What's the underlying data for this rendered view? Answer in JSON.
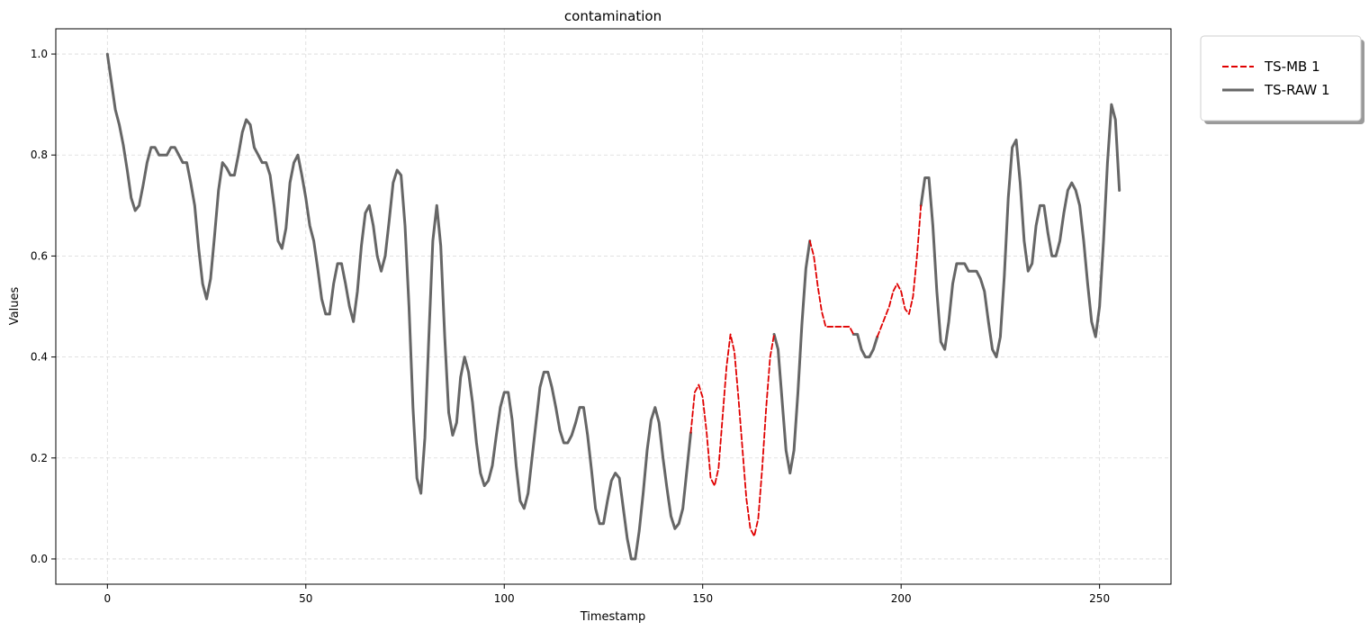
{
  "chart_data": {
    "type": "line",
    "title": "contamination",
    "xlabel": "Timestamp",
    "ylabel": "Values",
    "xlim": [
      -13,
      268
    ],
    "ylim": [
      -0.05,
      1.05
    ],
    "xticks": [
      0,
      50,
      100,
      150,
      200,
      250
    ],
    "xtick_labels": [
      "0",
      "50",
      "100",
      "150",
      "200",
      "250"
    ],
    "yticks": [
      0.0,
      0.2,
      0.4,
      0.6,
      0.8,
      1.0
    ],
    "ytick_labels": [
      "0.0",
      "0.2",
      "0.4",
      "0.6",
      "0.8",
      "1.0"
    ],
    "grid": true,
    "legend_position": "outside-top-right",
    "series": [
      {
        "name": "TS-MB 1",
        "color": "#e00000",
        "style": "dashed",
        "segments": [
          {
            "x": [
              147,
              148,
              149,
              150,
              151,
              152,
              153,
              154,
              155,
              156,
              157,
              158,
              159,
              160,
              161,
              162,
              163,
              164,
              165,
              166,
              167,
              168
            ],
            "y": [
              0.25,
              0.33,
              0.345,
              0.32,
              0.25,
              0.16,
              0.145,
              0.18,
              0.28,
              0.38,
              0.445,
              0.41,
              0.32,
              0.22,
              0.12,
              0.06,
              0.045,
              0.08,
              0.18,
              0.3,
              0.4,
              0.445
            ]
          },
          {
            "x": [
              177,
              178,
              179,
              180,
              181,
              182,
              183,
              184,
              185,
              186,
              187,
              188
            ],
            "y": [
              0.63,
              0.6,
              0.54,
              0.49,
              0.46,
              0.46,
              0.46,
              0.46,
              0.46,
              0.46,
              0.46,
              0.445
            ]
          },
          {
            "x": [
              194,
              195,
              196,
              197,
              198,
              199,
              200,
              201,
              202,
              203,
              204,
              205
            ],
            "y": [
              0.44,
              0.46,
              0.48,
              0.5,
              0.53,
              0.545,
              0.53,
              0.495,
              0.485,
              0.52,
              0.6,
              0.7
            ]
          }
        ]
      },
      {
        "name": "TS-RAW 1",
        "color": "#666666",
        "style": "solid",
        "segments": [
          {
            "x": [
              0,
              1,
              2,
              3,
              4,
              5,
              6,
              7,
              8,
              9,
              10,
              11,
              12,
              13,
              14,
              15,
              16,
              17,
              18,
              19,
              20,
              21,
              22,
              23,
              24,
              25,
              26,
              27,
              28,
              29,
              30,
              31,
              32,
              33,
              34,
              35,
              36,
              37,
              38,
              39,
              40,
              41,
              42,
              43,
              44,
              45,
              46,
              47,
              48,
              49,
              50,
              51,
              52,
              53,
              54,
              55,
              56,
              57,
              58,
              59,
              60,
              61,
              62,
              63,
              64,
              65,
              66,
              67,
              68,
              69,
              70,
              71,
              72,
              73,
              74,
              75,
              76,
              77,
              78,
              79,
              80,
              81,
              82,
              83,
              84,
              85,
              86,
              87,
              88,
              89,
              90,
              91,
              92,
              93,
              94,
              95,
              96,
              97,
              98,
              99,
              100,
              101,
              102,
              103,
              104,
              105,
              106,
              107,
              108,
              109,
              110,
              111,
              112,
              113,
              114,
              115,
              116,
              117,
              118,
              119,
              120,
              121,
              122,
              123,
              124,
              125,
              126,
              127,
              128,
              129,
              130,
              131,
              132,
              133,
              134,
              135,
              136,
              137,
              138,
              139,
              140,
              141,
              142,
              143,
              144,
              145,
              146,
              147
            ],
            "y": [
              1.0,
              0.945,
              0.89,
              0.86,
              0.82,
              0.77,
              0.715,
              0.69,
              0.7,
              0.74,
              0.785,
              0.815,
              0.815,
              0.8,
              0.8,
              0.8,
              0.815,
              0.815,
              0.8,
              0.785,
              0.785,
              0.745,
              0.7,
              0.615,
              0.545,
              0.515,
              0.555,
              0.64,
              0.73,
              0.785,
              0.775,
              0.76,
              0.76,
              0.8,
              0.845,
              0.87,
              0.86,
              0.815,
              0.8,
              0.785,
              0.785,
              0.76,
              0.7,
              0.63,
              0.615,
              0.655,
              0.745,
              0.785,
              0.8,
              0.76,
              0.715,
              0.66,
              0.63,
              0.575,
              0.515,
              0.485,
              0.485,
              0.545,
              0.585,
              0.585,
              0.545,
              0.5,
              0.47,
              0.53,
              0.62,
              0.685,
              0.7,
              0.66,
              0.6,
              0.57,
              0.6,
              0.67,
              0.745,
              0.77,
              0.76,
              0.66,
              0.5,
              0.3,
              0.16,
              0.13,
              0.24,
              0.44,
              0.63,
              0.7,
              0.62,
              0.44,
              0.29,
              0.245,
              0.27,
              0.36,
              0.4,
              0.37,
              0.31,
              0.23,
              0.17,
              0.145,
              0.155,
              0.185,
              0.245,
              0.3,
              0.33,
              0.33,
              0.275,
              0.185,
              0.115,
              0.1,
              0.13,
              0.2,
              0.27,
              0.34,
              0.37,
              0.37,
              0.34,
              0.3,
              0.255,
              0.23,
              0.23,
              0.245,
              0.27,
              0.3,
              0.3,
              0.245,
              0.175,
              0.1,
              0.07,
              0.07,
              0.115,
              0.155,
              0.17,
              0.16,
              0.1,
              0.04,
              0.0,
              0.0,
              0.055,
              0.13,
              0.215,
              0.275,
              0.3,
              0.27,
              0.2,
              0.14,
              0.085,
              0.06,
              0.07,
              0.1,
              0.175,
              0.25
            ]
          },
          {
            "x": [
              168,
              169,
              170,
              171,
              172,
              173,
              174,
              175,
              176,
              177
            ],
            "y": [
              0.445,
              0.415,
              0.315,
              0.215,
              0.17,
              0.215,
              0.33,
              0.465,
              0.575,
              0.63
            ]
          },
          {
            "x": [
              188,
              189,
              190,
              191,
              192,
              193,
              194
            ],
            "y": [
              0.445,
              0.445,
              0.415,
              0.4,
              0.4,
              0.415,
              0.44
            ]
          },
          {
            "x": [
              205,
              206,
              207,
              208,
              209,
              210,
              211,
              212,
              213,
              214,
              215,
              216,
              217,
              218,
              219,
              220,
              221,
              222,
              223,
              224,
              225,
              226,
              227,
              228,
              229,
              230,
              231,
              232,
              233,
              234,
              235,
              236,
              237,
              238,
              239,
              240,
              241,
              242,
              243,
              244,
              245,
              246,
              247,
              248,
              249,
              250,
              251,
              252,
              253,
              254,
              255
            ],
            "y": [
              0.7,
              0.755,
              0.755,
              0.66,
              0.53,
              0.43,
              0.415,
              0.47,
              0.545,
              0.585,
              0.585,
              0.585,
              0.57,
              0.57,
              0.57,
              0.555,
              0.53,
              0.47,
              0.415,
              0.4,
              0.44,
              0.56,
              0.715,
              0.815,
              0.83,
              0.745,
              0.63,
              0.57,
              0.585,
              0.66,
              0.7,
              0.7,
              0.645,
              0.6,
              0.6,
              0.63,
              0.685,
              0.73,
              0.745,
              0.73,
              0.7,
              0.63,
              0.545,
              0.47,
              0.44,
              0.5,
              0.63,
              0.785,
              0.9,
              0.87,
              0.73
            ]
          }
        ]
      }
    ]
  }
}
